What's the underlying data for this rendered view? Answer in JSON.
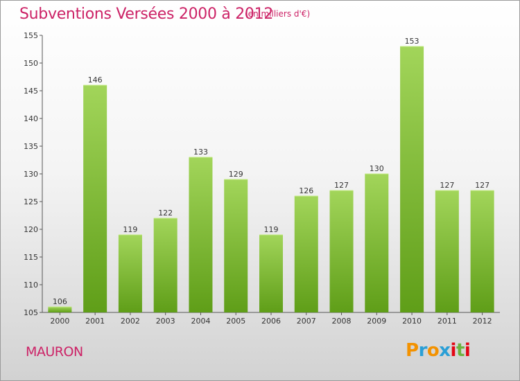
{
  "header": {
    "title": "Subventions Versées 2000 à 2012",
    "unit": "(en milliers d'€)"
  },
  "footer": {
    "commune": "MAURON",
    "logo_letters": [
      "P",
      "r",
      "o",
      "x",
      "i",
      "t",
      "i"
    ],
    "logo_colors": [
      "#f39200",
      "#2a9fd6",
      "#f39200",
      "#2a9fd6",
      "#e30613",
      "#6cb33f",
      "#e30613"
    ]
  },
  "colors": {
    "title": "#cc2266",
    "bar_light": "#a2d55a",
    "bar_dark": "#5f9e18"
  },
  "chart_data": {
    "type": "bar",
    "title": "Subventions Versées 2000 à 2012",
    "subtitle": "(en milliers d'€)",
    "xlabel": "",
    "ylabel": "",
    "categories": [
      "2000",
      "2001",
      "2002",
      "2003",
      "2004",
      "2005",
      "2006",
      "2007",
      "2008",
      "2009",
      "2010",
      "2011",
      "2012"
    ],
    "values": [
      106,
      146,
      119,
      122,
      133,
      129,
      119,
      126,
      127,
      130,
      153,
      127,
      127
    ],
    "ylim": [
      105,
      155
    ],
    "yticks": [
      105,
      110,
      115,
      120,
      125,
      130,
      135,
      140,
      145,
      150,
      155
    ],
    "grid": false,
    "legend": "none"
  }
}
